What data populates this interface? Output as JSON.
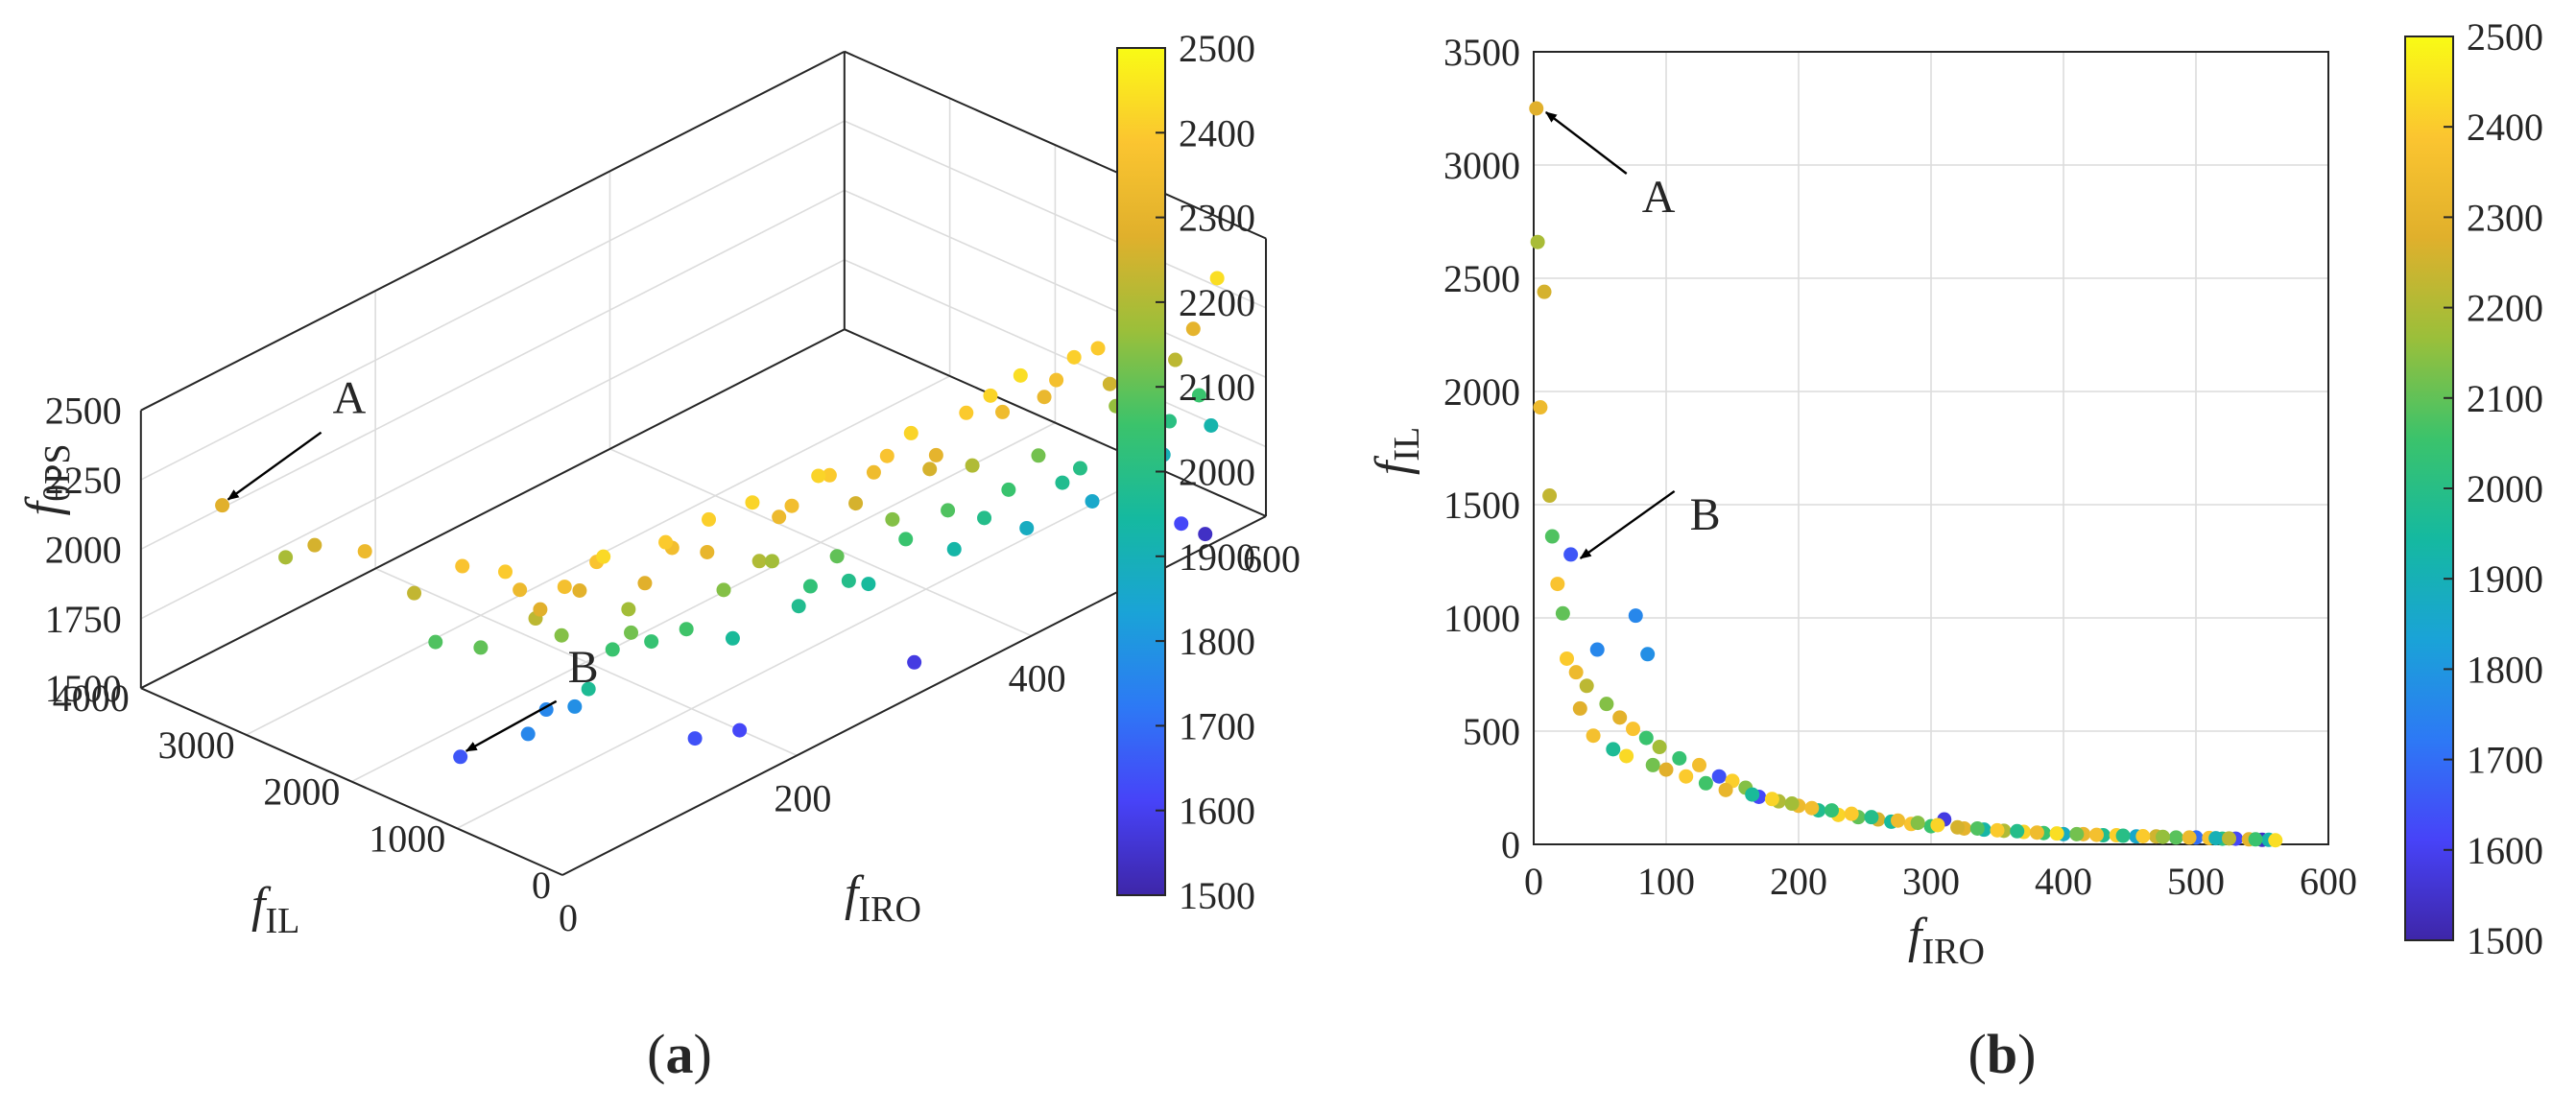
{
  "panel_labels": {
    "a_open": "(",
    "a_letter": "a",
    "a_close": ")",
    "b_open": "(",
    "b_letter": "b",
    "b_close": ")"
  },
  "colors": {
    "cmap": [
      "#3e26a8",
      "#4743f8",
      "#2d79f5",
      "#1aa3d7",
      "#15b9a0",
      "#3bc36b",
      "#9bbf3a",
      "#e0b02c",
      "#fbc530",
      "#f9fb15"
    ],
    "arrow": "#000000",
    "axis": "#262626",
    "grid": "#dcdcdc"
  },
  "chart_data": [
    {
      "type": "scatter",
      "projection": "3d",
      "panel": "(a)",
      "xlabel": {
        "main": "f",
        "sub": "IRO"
      },
      "ylabel": {
        "main": "f",
        "sub": "IL"
      },
      "zlabel": {
        "main": "f",
        "sub": "θPS"
      },
      "xlim": [
        0,
        600
      ],
      "ylim": [
        0,
        4000
      ],
      "zlim": [
        1500,
        2500
      ],
      "xticks": [
        "0",
        "200",
        "400",
        "600"
      ],
      "yticks": [
        "0",
        "1000",
        "2000",
        "3000",
        "4000"
      ],
      "zticks": [
        "1500",
        "1750",
        "2000",
        "2250",
        "2500"
      ],
      "colorbar": {
        "min": 1500,
        "max": 2500,
        "ticks": [
          "1500",
          "1600",
          "1700",
          "1800",
          "1900",
          "2000",
          "2100",
          "2200",
          "2300",
          "2400",
          "2500"
        ]
      },
      "annotations": [
        {
          "text": "A",
          "target": [
            2,
            3250,
            2280
          ]
        },
        {
          "text": "B",
          "target": [
            28,
            1280,
            1650
          ]
        }
      ],
      "points": [
        [
          2,
          3250,
          2280
        ],
        [
          3,
          2660,
          2190
        ],
        [
          8,
          2440,
          2260
        ],
        [
          5,
          1930,
          2330
        ],
        [
          12,
          1540,
          2230
        ],
        [
          14,
          1360,
          2080
        ],
        [
          28,
          1280,
          1650
        ],
        [
          18,
          1150,
          2380
        ],
        [
          22,
          1020,
          2100
        ],
        [
          77,
          1010,
          1760
        ],
        [
          86,
          840,
          1780
        ],
        [
          48,
          860,
          1760
        ],
        [
          25,
          820,
          2400
        ],
        [
          32,
          760,
          2330
        ],
        [
          40,
          700,
          2220
        ],
        [
          55,
          620,
          2140
        ],
        [
          65,
          560,
          2290
        ],
        [
          75,
          510,
          2380
        ],
        [
          85,
          470,
          2050
        ],
        [
          95,
          430,
          2180
        ],
        [
          110,
          380,
          2040
        ],
        [
          125,
          350,
          2350
        ],
        [
          140,
          300,
          1640
        ],
        [
          150,
          280,
          2410
        ],
        [
          160,
          250,
          2140
        ],
        [
          170,
          210,
          1620
        ],
        [
          185,
          190,
          2200
        ],
        [
          200,
          170,
          2330
        ],
        [
          215,
          150,
          1980
        ],
        [
          230,
          130,
          2420
        ],
        [
          245,
          120,
          2100
        ],
        [
          260,
          110,
          2260
        ],
        [
          270,
          100,
          1950
        ],
        [
          285,
          90,
          2380
        ],
        [
          300,
          80,
          2050
        ],
        [
          310,
          110,
          1580
        ],
        [
          325,
          70,
          2300
        ],
        [
          340,
          65,
          1930
        ],
        [
          355,
          60,
          2200
        ],
        [
          370,
          55,
          2420
        ],
        [
          385,
          50,
          2050
        ],
        [
          400,
          45,
          1880
        ],
        [
          415,
          45,
          2320
        ],
        [
          430,
          40,
          1980
        ],
        [
          440,
          40,
          2410
        ],
        [
          455,
          35,
          1860
        ],
        [
          470,
          35,
          2250
        ],
        [
          485,
          30,
          2090
        ],
        [
          500,
          30,
          1700
        ],
        [
          510,
          28,
          2380
        ],
        [
          520,
          25,
          2010
        ],
        [
          530,
          25,
          1620
        ],
        [
          540,
          22,
          2300
        ],
        [
          550,
          20,
          1540
        ],
        [
          555,
          20,
          1920
        ],
        [
          560,
          18,
          2440
        ],
        [
          35,
          600,
          2280
        ],
        [
          45,
          480,
          2360
        ],
        [
          60,
          420,
          1970
        ],
        [
          70,
          390,
          2430
        ],
        [
          90,
          350,
          2120
        ],
        [
          100,
          330,
          2280
        ],
        [
          115,
          300,
          2400
        ],
        [
          130,
          270,
          2060
        ],
        [
          145,
          240,
          2310
        ],
        [
          165,
          220,
          1960
        ],
        [
          180,
          200,
          2420
        ],
        [
          195,
          180,
          2180
        ],
        [
          210,
          160,
          2350
        ],
        [
          225,
          150,
          2030
        ],
        [
          240,
          135,
          2400
        ],
        [
          255,
          120,
          1990
        ],
        [
          275,
          105,
          2340
        ],
        [
          290,
          95,
          2140
        ],
        [
          305,
          85,
          2420
        ],
        [
          320,
          75,
          2260
        ],
        [
          335,
          70,
          2080
        ],
        [
          350,
          62,
          2400
        ],
        [
          365,
          58,
          1990
        ],
        [
          380,
          52,
          2340
        ],
        [
          395,
          48,
          2440
        ],
        [
          410,
          45,
          2120
        ],
        [
          425,
          42,
          2360
        ],
        [
          445,
          38,
          2000
        ],
        [
          460,
          36,
          2400
        ],
        [
          475,
          33,
          2160
        ],
        [
          495,
          30,
          2330
        ],
        [
          515,
          27,
          1900
        ],
        [
          525,
          26,
          2220
        ],
        [
          545,
          22,
          2050
        ]
      ]
    },
    {
      "type": "scatter",
      "panel": "(b)",
      "xlabel": {
        "main": "f",
        "sub": "IRO"
      },
      "ylabel": {
        "main": "f",
        "sub": "IL"
      },
      "xlim": [
        0,
        600
      ],
      "ylim": [
        0,
        3500
      ],
      "xticks": [
        "0",
        "100",
        "200",
        "300",
        "400",
        "500",
        "600"
      ],
      "yticks": [
        "0",
        "500",
        "1000",
        "1500",
        "2000",
        "2500",
        "3000",
        "3500"
      ],
      "grid": true,
      "colorbar": {
        "min": 1500,
        "max": 2500,
        "ticks": [
          "1500",
          "1600",
          "1700",
          "1800",
          "1900",
          "2000",
          "2100",
          "2200",
          "2300",
          "2400",
          "2500"
        ]
      },
      "annotations": [
        {
          "text": "A",
          "target": [
            2,
            3250
          ]
        },
        {
          "text": "B",
          "target": [
            28,
            1280
          ]
        }
      ]
    }
  ]
}
